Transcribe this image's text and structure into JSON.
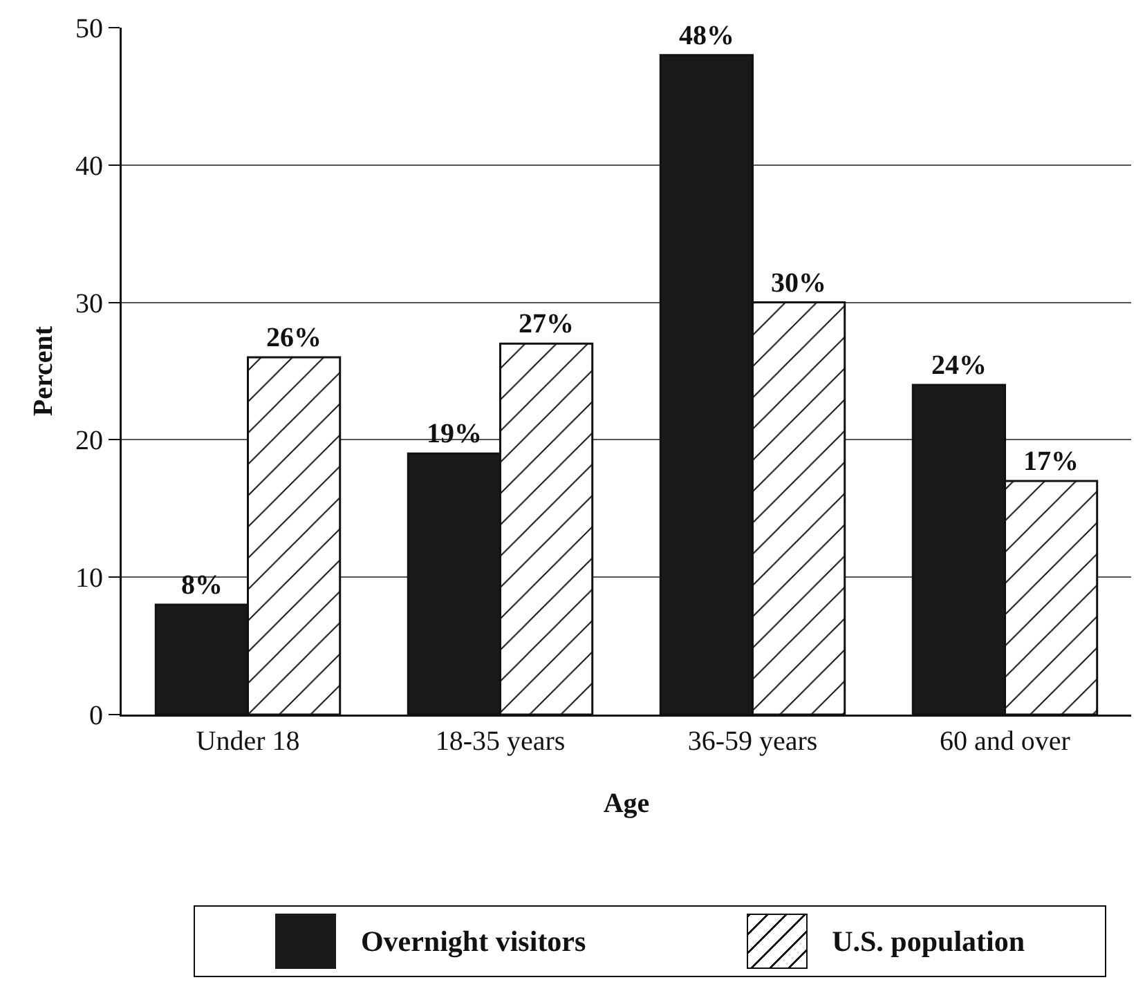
{
  "chart_data": {
    "type": "bar",
    "xlabel": "Age",
    "ylabel": "Percent",
    "categories": [
      "Under 18",
      "18-35 years",
      "36-59 years",
      "60 and over"
    ],
    "series": [
      {
        "name": "Overnight visitors",
        "color": "#1a1a1a",
        "values": [
          8,
          19,
          48,
          24
        ],
        "value_labels": [
          "8%",
          "19%",
          "48%",
          "24%"
        ]
      },
      {
        "name": "U.S. population",
        "color": "#111111",
        "values": [
          26,
          27,
          30,
          17
        ],
        "value_labels": [
          "26%",
          "27%",
          "30%",
          "17%"
        ]
      }
    ],
    "ylim": [
      0,
      50
    ],
    "yticks": [
      0,
      10,
      20,
      30,
      40,
      50
    ],
    "grid": "y",
    "legend": "bottom"
  }
}
